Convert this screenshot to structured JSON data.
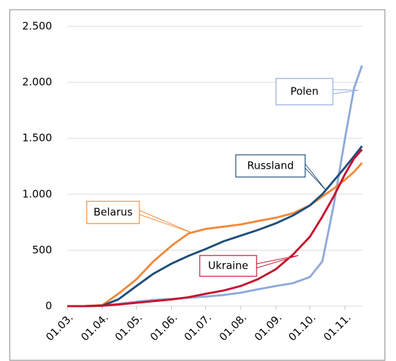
{
  "chart_data": {
    "type": "line",
    "xlim": [
      0,
      260
    ],
    "xticks": [
      {
        "value": 0,
        "label": "01.03."
      },
      {
        "value": 31,
        "label": "01.04."
      },
      {
        "value": 61,
        "label": "01.05."
      },
      {
        "value": 92,
        "label": "01.06."
      },
      {
        "value": 122,
        "label": "01.07."
      },
      {
        "value": 153,
        "label": "01.08."
      },
      {
        "value": 184,
        "label": "01.09."
      },
      {
        "value": 214,
        "label": "01.10."
      },
      {
        "value": 245,
        "label": "01.11."
      }
    ],
    "ylim": [
      0,
      2500
    ],
    "yticks": [
      {
        "value": 0,
        "label": "0"
      },
      {
        "value": 500,
        "label": "500"
      },
      {
        "value": 1000,
        "label": "1.000"
      },
      {
        "value": 1500,
        "label": "1.500"
      },
      {
        "value": 2000,
        "label": "2.000"
      },
      {
        "value": 2500,
        "label": "2.500"
      }
    ],
    "grid": true,
    "x": [
      0,
      15,
      31,
      45,
      61,
      76,
      92,
      107,
      122,
      138,
      153,
      168,
      184,
      199,
      214,
      225,
      235,
      245,
      253,
      260
    ],
    "series": [
      {
        "name": "Polen",
        "color": "#8eaadb",
        "values": [
          0,
          0,
          3,
          20,
          40,
          55,
          65,
          75,
          85,
          100,
          120,
          150,
          180,
          205,
          260,
          400,
          900,
          1500,
          1950,
          2150
        ]
      },
      {
        "name": "Belarus",
        "color": "#f08a3c",
        "values": [
          0,
          0,
          10,
          110,
          240,
          400,
          540,
          650,
          690,
          710,
          730,
          760,
          790,
          830,
          900,
          980,
          1050,
          1130,
          1200,
          1280
        ]
      },
      {
        "name": "Russland",
        "color": "#1f4e79",
        "values": [
          0,
          0,
          5,
          60,
          180,
          290,
          380,
          450,
          510,
          580,
          630,
          680,
          740,
          810,
          900,
          1000,
          1120,
          1240,
          1340,
          1430
        ]
      },
      {
        "name": "Ukraine",
        "color": "#c8102e",
        "values": [
          0,
          0,
          5,
          15,
          30,
          45,
          60,
          80,
          110,
          140,
          180,
          240,
          330,
          460,
          620,
          800,
          980,
          1180,
          1320,
          1400
        ]
      }
    ]
  }
}
